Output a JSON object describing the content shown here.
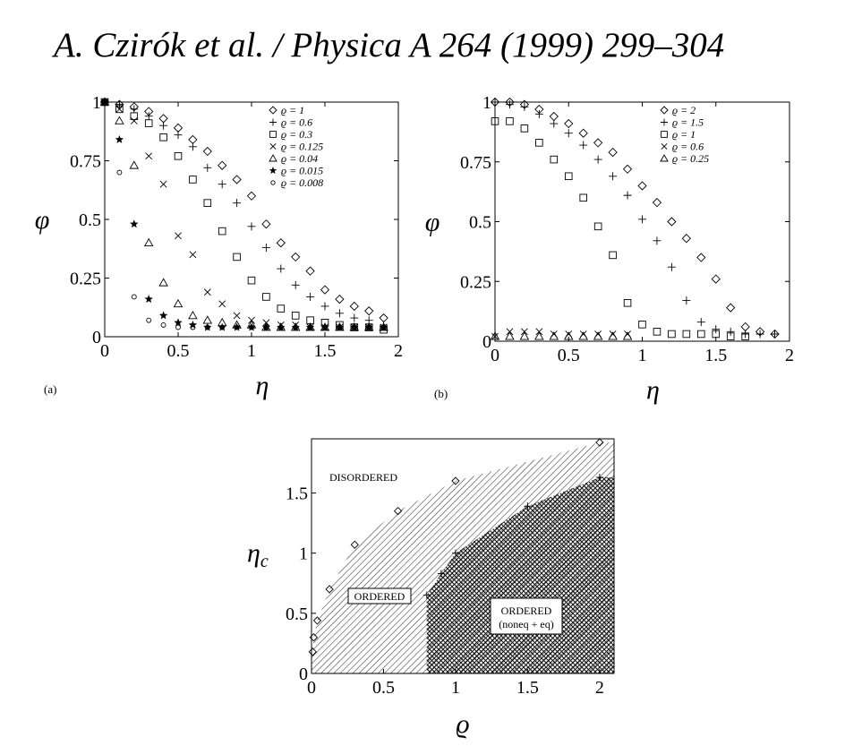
{
  "header": {
    "citation": "A. Czirók et al. / Physica A 264 (1999) 299–304"
  },
  "chart_data": [
    {
      "type": "scatter",
      "panel_label": "(a)",
      "xlabel": "η",
      "ylabel": "φ",
      "xlim": [
        0,
        2
      ],
      "ylim": [
        0,
        1
      ],
      "xticks": [
        "0",
        "0.5",
        "1",
        "1.5",
        "2"
      ],
      "yticks": [
        "0",
        "0.25",
        "0.5",
        "0.75",
        "1"
      ],
      "legend_position": "top-right",
      "series": [
        {
          "name": "ϱ = 1",
          "marker": "diamond",
          "points": [
            [
              0,
              1
            ],
            [
              0.1,
              0.99
            ],
            [
              0.2,
              0.98
            ],
            [
              0.3,
              0.96
            ],
            [
              0.4,
              0.93
            ],
            [
              0.5,
              0.89
            ],
            [
              0.6,
              0.84
            ],
            [
              0.7,
              0.79
            ],
            [
              0.8,
              0.73
            ],
            [
              0.9,
              0.67
            ],
            [
              1.0,
              0.6
            ],
            [
              1.1,
              0.48
            ],
            [
              1.2,
              0.4
            ],
            [
              1.3,
              0.34
            ],
            [
              1.4,
              0.28
            ],
            [
              1.5,
              0.2
            ],
            [
              1.6,
              0.16
            ],
            [
              1.7,
              0.13
            ],
            [
              1.8,
              0.11
            ],
            [
              1.9,
              0.08
            ]
          ]
        },
        {
          "name": "ϱ = 0.6",
          "marker": "plus",
          "points": [
            [
              0,
              1
            ],
            [
              0.1,
              0.99
            ],
            [
              0.2,
              0.97
            ],
            [
              0.3,
              0.94
            ],
            [
              0.4,
              0.9
            ],
            [
              0.5,
              0.86
            ],
            [
              0.6,
              0.81
            ],
            [
              0.7,
              0.72
            ],
            [
              0.8,
              0.65
            ],
            [
              0.9,
              0.57
            ],
            [
              1.0,
              0.47
            ],
            [
              1.1,
              0.38
            ],
            [
              1.2,
              0.29
            ],
            [
              1.3,
              0.22
            ],
            [
              1.4,
              0.17
            ],
            [
              1.5,
              0.13
            ],
            [
              1.6,
              0.1
            ],
            [
              1.7,
              0.08
            ],
            [
              1.8,
              0.07
            ],
            [
              1.9,
              0.05
            ]
          ]
        },
        {
          "name": "ϱ = 0.3",
          "marker": "square",
          "points": [
            [
              0,
              1
            ],
            [
              0.1,
              0.97
            ],
            [
              0.2,
              0.94
            ],
            [
              0.3,
              0.91
            ],
            [
              0.4,
              0.85
            ],
            [
              0.5,
              0.77
            ],
            [
              0.6,
              0.67
            ],
            [
              0.7,
              0.57
            ],
            [
              0.8,
              0.45
            ],
            [
              0.9,
              0.34
            ],
            [
              1.0,
              0.24
            ],
            [
              1.1,
              0.17
            ],
            [
              1.2,
              0.12
            ],
            [
              1.3,
              0.09
            ],
            [
              1.4,
              0.07
            ],
            [
              1.5,
              0.06
            ],
            [
              1.6,
              0.05
            ],
            [
              1.7,
              0.04
            ],
            [
              1.8,
              0.04
            ],
            [
              1.9,
              0.03
            ]
          ]
        },
        {
          "name": "ϱ = 0.125",
          "marker": "cross",
          "points": [
            [
              0,
              1
            ],
            [
              0.1,
              0.97
            ],
            [
              0.2,
              0.92
            ],
            [
              0.3,
              0.77
            ],
            [
              0.4,
              0.65
            ],
            [
              0.5,
              0.43
            ],
            [
              0.6,
              0.35
            ],
            [
              0.7,
              0.19
            ],
            [
              0.8,
              0.14
            ],
            [
              0.9,
              0.09
            ],
            [
              1.0,
              0.07
            ],
            [
              1.1,
              0.06
            ],
            [
              1.2,
              0.05
            ],
            [
              1.3,
              0.05
            ],
            [
              1.4,
              0.04
            ],
            [
              1.5,
              0.04
            ],
            [
              1.6,
              0.04
            ],
            [
              1.7,
              0.04
            ],
            [
              1.8,
              0.04
            ],
            [
              1.9,
              0.04
            ]
          ]
        },
        {
          "name": "ϱ = 0.04",
          "marker": "triangle",
          "points": [
            [
              0,
              1
            ],
            [
              0.1,
              0.92
            ],
            [
              0.2,
              0.73
            ],
            [
              0.3,
              0.4
            ],
            [
              0.4,
              0.23
            ],
            [
              0.5,
              0.14
            ],
            [
              0.6,
              0.09
            ],
            [
              0.7,
              0.07
            ],
            [
              0.8,
              0.06
            ],
            [
              0.9,
              0.05
            ],
            [
              1.0,
              0.05
            ],
            [
              1.1,
              0.04
            ],
            [
              1.2,
              0.04
            ],
            [
              1.3,
              0.04
            ],
            [
              1.4,
              0.04
            ],
            [
              1.5,
              0.04
            ],
            [
              1.6,
              0.04
            ],
            [
              1.7,
              0.04
            ],
            [
              1.8,
              0.04
            ],
            [
              1.9,
              0.04
            ]
          ]
        },
        {
          "name": "ϱ = 0.015",
          "marker": "star",
          "points": [
            [
              0,
              1
            ],
            [
              0.1,
              0.84
            ],
            [
              0.2,
              0.48
            ],
            [
              0.3,
              0.16
            ],
            [
              0.4,
              0.09
            ],
            [
              0.5,
              0.06
            ],
            [
              0.6,
              0.05
            ],
            [
              0.7,
              0.04
            ],
            [
              0.8,
              0.04
            ],
            [
              0.9,
              0.04
            ],
            [
              1.0,
              0.04
            ],
            [
              1.1,
              0.04
            ],
            [
              1.2,
              0.04
            ],
            [
              1.3,
              0.04
            ],
            [
              1.4,
              0.04
            ],
            [
              1.5,
              0.04
            ],
            [
              1.6,
              0.04
            ],
            [
              1.7,
              0.04
            ],
            [
              1.8,
              0.04
            ],
            [
              1.9,
              0.04
            ]
          ]
        },
        {
          "name": "ϱ = 0.008",
          "marker": "circle",
          "points": [
            [
              0,
              1
            ],
            [
              0.1,
              0.7
            ],
            [
              0.2,
              0.17
            ],
            [
              0.3,
              0.07
            ],
            [
              0.4,
              0.05
            ],
            [
              0.5,
              0.04
            ],
            [
              0.6,
              0.04
            ],
            [
              0.7,
              0.04
            ],
            [
              0.8,
              0.04
            ],
            [
              0.9,
              0.04
            ],
            [
              1.0,
              0.04
            ],
            [
              1.1,
              0.04
            ],
            [
              1.2,
              0.04
            ],
            [
              1.3,
              0.04
            ],
            [
              1.4,
              0.04
            ],
            [
              1.5,
              0.04
            ],
            [
              1.6,
              0.04
            ],
            [
              1.7,
              0.04
            ],
            [
              1.8,
              0.04
            ],
            [
              1.9,
              0.04
            ]
          ]
        }
      ]
    },
    {
      "type": "scatter",
      "panel_label": "(b)",
      "xlabel": "η",
      "ylabel": "φ",
      "xlim": [
        0,
        2
      ],
      "ylim": [
        0,
        1
      ],
      "xticks": [
        "0",
        "0.5",
        "1",
        "1.5",
        "2"
      ],
      "yticks": [
        "0",
        "0.25",
        "0.5",
        "0.75",
        "1"
      ],
      "legend_position": "top-right",
      "series": [
        {
          "name": "ϱ = 2",
          "marker": "diamond",
          "points": [
            [
              0,
              1
            ],
            [
              0.1,
              1.0
            ],
            [
              0.2,
              0.99
            ],
            [
              0.3,
              0.97
            ],
            [
              0.4,
              0.94
            ],
            [
              0.5,
              0.91
            ],
            [
              0.6,
              0.87
            ],
            [
              0.7,
              0.83
            ],
            [
              0.8,
              0.79
            ],
            [
              0.9,
              0.72
            ],
            [
              1.0,
              0.65
            ],
            [
              1.1,
              0.58
            ],
            [
              1.2,
              0.5
            ],
            [
              1.3,
              0.43
            ],
            [
              1.4,
              0.35
            ],
            [
              1.5,
              0.26
            ],
            [
              1.6,
              0.14
            ],
            [
              1.7,
              0.06
            ],
            [
              1.8,
              0.04
            ],
            [
              1.9,
              0.03
            ]
          ]
        },
        {
          "name": "ϱ = 1.5",
          "marker": "plus",
          "points": [
            [
              0,
              1
            ],
            [
              0.1,
              0.99
            ],
            [
              0.2,
              0.98
            ],
            [
              0.3,
              0.95
            ],
            [
              0.4,
              0.91
            ],
            [
              0.5,
              0.87
            ],
            [
              0.6,
              0.82
            ],
            [
              0.7,
              0.76
            ],
            [
              0.8,
              0.69
            ],
            [
              0.9,
              0.61
            ],
            [
              1.0,
              0.51
            ],
            [
              1.1,
              0.42
            ],
            [
              1.2,
              0.31
            ],
            [
              1.3,
              0.17
            ],
            [
              1.4,
              0.08
            ],
            [
              1.5,
              0.05
            ],
            [
              1.6,
              0.04
            ],
            [
              1.7,
              0.03
            ],
            [
              1.8,
              0.03
            ],
            [
              1.9,
              0.03
            ]
          ]
        },
        {
          "name": "ϱ = 1",
          "marker": "square",
          "points": [
            [
              0,
              0.92
            ],
            [
              0.1,
              0.92
            ],
            [
              0.2,
              0.89
            ],
            [
              0.3,
              0.83
            ],
            [
              0.4,
              0.76
            ],
            [
              0.5,
              0.69
            ],
            [
              0.6,
              0.6
            ],
            [
              0.7,
              0.48
            ],
            [
              0.8,
              0.36
            ],
            [
              0.9,
              0.16
            ],
            [
              1.0,
              0.07
            ],
            [
              1.1,
              0.04
            ],
            [
              1.2,
              0.03
            ],
            [
              1.3,
              0.03
            ],
            [
              1.4,
              0.03
            ],
            [
              1.5,
              0.03
            ],
            [
              1.6,
              0.02
            ],
            [
              1.7,
              0.02
            ]
          ]
        },
        {
          "name": "ϱ = 0.6",
          "marker": "cross",
          "points": [
            [
              0,
              0.02
            ],
            [
              0.1,
              0.04
            ],
            [
              0.2,
              0.04
            ],
            [
              0.3,
              0.04
            ],
            [
              0.4,
              0.03
            ],
            [
              0.5,
              0.03
            ],
            [
              0.6,
              0.03
            ],
            [
              0.7,
              0.03
            ],
            [
              0.8,
              0.03
            ],
            [
              0.9,
              0.03
            ]
          ]
        },
        {
          "name": "ϱ = 0.25",
          "marker": "triangle",
          "points": [
            [
              0,
              0.02
            ],
            [
              0.1,
              0.02
            ],
            [
              0.2,
              0.02
            ],
            [
              0.3,
              0.02
            ],
            [
              0.4,
              0.02
            ],
            [
              0.5,
              0.02
            ],
            [
              0.6,
              0.02
            ],
            [
              0.7,
              0.02
            ],
            [
              0.8,
              0.02
            ],
            [
              0.9,
              0.02
            ]
          ]
        }
      ]
    },
    {
      "type": "scatter",
      "subtype": "phase-diagram",
      "xlabel": "ϱ",
      "ylabel": "η_c",
      "ylabel_main": "η",
      "ylabel_sub": "c",
      "xlim": [
        0,
        2.1
      ],
      "ylim": [
        0,
        1.95
      ],
      "xticks": [
        "0",
        "0.5",
        "1",
        "1.5",
        "2"
      ],
      "yticks": [
        "0",
        "0.5",
        "1",
        "1.5"
      ],
      "regions": [
        {
          "label": "DISORDERED"
        },
        {
          "label": "ORDERED"
        },
        {
          "label": "ORDERED",
          "sublabel": "(noneq + eq)"
        }
      ],
      "series": [
        {
          "name": "upper boundary",
          "marker": "diamond",
          "points": [
            [
              0.008,
              0.18
            ],
            [
              0.015,
              0.3
            ],
            [
              0.04,
              0.44
            ],
            [
              0.125,
              0.7
            ],
            [
              0.3,
              1.07
            ],
            [
              0.6,
              1.35
            ],
            [
              1.0,
              1.6
            ],
            [
              2.0,
              1.92
            ]
          ]
        },
        {
          "name": "lower boundary",
          "marker": "plus",
          "points": [
            [
              0.8,
              0.65
            ],
            [
              0.9,
              0.83
            ],
            [
              1.0,
              1.0
            ],
            [
              1.5,
              1.39
            ],
            [
              2.0,
              1.63
            ]
          ]
        }
      ]
    }
  ]
}
